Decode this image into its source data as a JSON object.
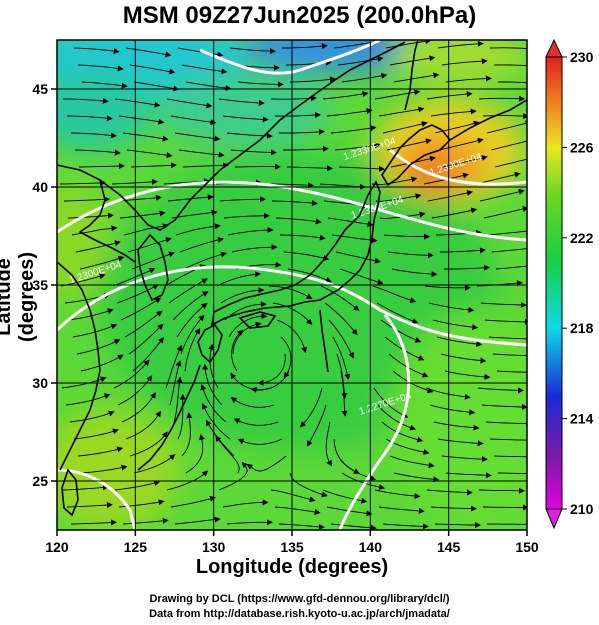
{
  "title": "MSM 09Z27Jun2025 (200.0hPa)",
  "chart_data": {
    "type": "map",
    "xlabel": "Longitude (degrees)",
    "ylabel": "Latitude  (degrees)",
    "xlim": [
      120,
      150
    ],
    "ylim": [
      22.5,
      47.5
    ],
    "xticks": [
      "120",
      "125",
      "130",
      "135",
      "140",
      "145",
      "150"
    ],
    "yticks": [
      "25",
      "30",
      "35",
      "40",
      "45"
    ],
    "colorbar": {
      "min": 210,
      "max": 230,
      "ticks": [
        "210",
        "214",
        "218",
        "222",
        "226",
        "230"
      ]
    },
    "contours": [
      {
        "label": "1.2390E+04",
        "lon": 145.5,
        "lat": 41.0
      },
      {
        "label": "1.2360E+04",
        "lon": 140.5,
        "lat": 38.8
      },
      {
        "label": "1.2330E+04",
        "lon": 140.0,
        "lat": 41.8
      },
      {
        "label": "1.2300E+04",
        "lon": 122.5,
        "lat": 35.5
      },
      {
        "label": "1.2270E+04",
        "lon": 141.0,
        "lat": 28.8
      }
    ]
  },
  "credits": {
    "line1": "Drawing by DCL (https://www.gfd-dennou.org/library/dcl/)",
    "line2": "Data from http://database.rish.kyoto-u.ac.jp/arch/jmadata/"
  }
}
